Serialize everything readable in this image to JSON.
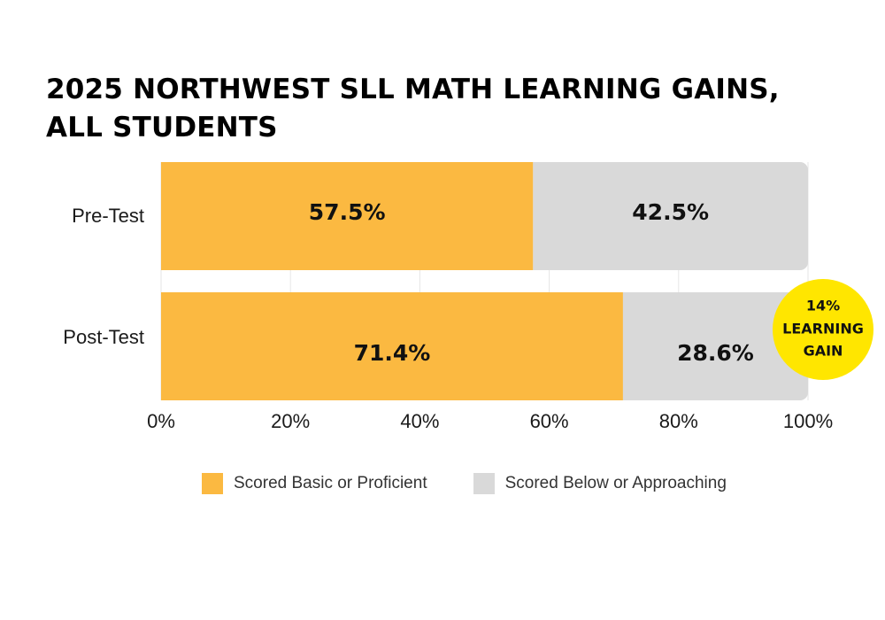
{
  "chart_data": {
    "type": "bar",
    "orientation": "horizontal",
    "stacked": true,
    "title": "2025 NORTHWEST SLL MATH LEARNING GAINS, ALL STUDENTS",
    "categories": [
      "Pre-Test",
      "Post-Test"
    ],
    "series": [
      {
        "name": "Scored Basic or Proficient",
        "values": [
          57.5,
          71.4
        ],
        "labels": [
          "57.5%",
          "71.4%"
        ],
        "color": "#FBB941"
      },
      {
        "name": "Scored Below or Approaching",
        "values": [
          42.5,
          28.6
        ],
        "labels": [
          "42.5%",
          "28.6%"
        ],
        "color": "#D9D9D9"
      }
    ],
    "xlim": [
      0,
      100
    ],
    "x_ticks": [
      "0%",
      "20%",
      "40%",
      "60%",
      "80%",
      "100%"
    ],
    "grid": "vertical",
    "legend": "bottom",
    "annotation": {
      "lines": [
        "14%",
        "LEARNING",
        "GAIN"
      ],
      "color": "#FFE600"
    }
  }
}
